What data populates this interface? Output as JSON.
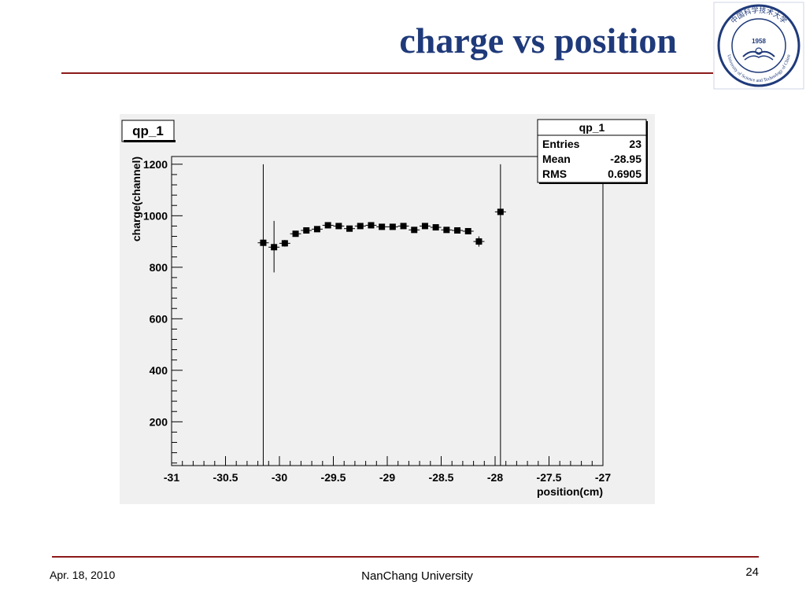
{
  "slide": {
    "title": "charge vs position",
    "footer_date": "Apr. 18, 2010",
    "footer_center": "NanChang University",
    "page_number": "24"
  },
  "logo": {
    "year": "1958",
    "top_text": "中国科学技术大学",
    "ring_text": "University of Science and Technology of China"
  },
  "colors": {
    "title": "#1f3a7a",
    "rule": "#8b1a1a",
    "plot_background": "#f0f0f0",
    "marker": "#000000",
    "logo": "#1f3a7a"
  },
  "chart_data": {
    "type": "scatter",
    "title": "qp_1",
    "xlabel": "position(cm)",
    "ylabel": "charge(channel)",
    "xlim": [
      -31,
      -27
    ],
    "ylim": [
      30,
      1230
    ],
    "x_ticks": [
      -31,
      -30.5,
      -30,
      -29.5,
      -29,
      -28.5,
      -28,
      -27.5,
      -27
    ],
    "y_ticks": [
      200,
      400,
      600,
      800,
      1000,
      1200
    ],
    "grid": false,
    "stats_box": {
      "title": "qp_1",
      "rows": [
        {
          "label": "Entries",
          "value": "23"
        },
        {
          "label": "Mean",
          "value": "-28.95"
        },
        {
          "label": "RMS",
          "value": "0.6905"
        }
      ],
      "placement": "top-right"
    },
    "points": [
      {
        "x": -30.15,
        "y": 895,
        "ylo": 0,
        "yhi": 1200
      },
      {
        "x": -30.05,
        "y": 878,
        "ylo": 780,
        "yhi": 980
      },
      {
        "x": -29.95,
        "y": 893,
        "ylo": 880,
        "yhi": 906
      },
      {
        "x": -29.85,
        "y": 930
      },
      {
        "x": -29.75,
        "y": 943
      },
      {
        "x": -29.65,
        "y": 948
      },
      {
        "x": -29.55,
        "y": 963
      },
      {
        "x": -29.45,
        "y": 960
      },
      {
        "x": -29.35,
        "y": 950
      },
      {
        "x": -29.25,
        "y": 960
      },
      {
        "x": -29.15,
        "y": 963
      },
      {
        "x": -29.05,
        "y": 957
      },
      {
        "x": -28.95,
        "y": 957
      },
      {
        "x": -28.85,
        "y": 960
      },
      {
        "x": -28.75,
        "y": 945
      },
      {
        "x": -28.65,
        "y": 960
      },
      {
        "x": -28.55,
        "y": 955
      },
      {
        "x": -28.45,
        "y": 945
      },
      {
        "x": -28.35,
        "y": 943
      },
      {
        "x": -28.25,
        "y": 940
      },
      {
        "x": -28.15,
        "y": 900,
        "ylo": 880,
        "yhi": 920
      },
      {
        "x": -27.95,
        "y": 1015,
        "ylo": 0,
        "yhi": 1200
      }
    ]
  }
}
